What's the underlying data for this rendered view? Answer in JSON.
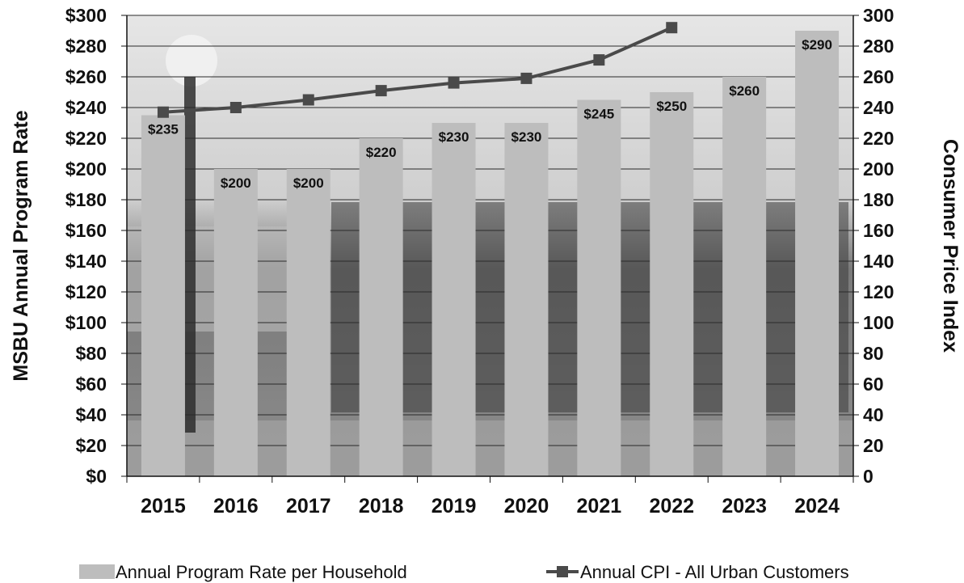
{
  "chart_data": {
    "type": "bar",
    "categories": [
      "2015",
      "2016",
      "2017",
      "2018",
      "2019",
      "2020",
      "2021",
      "2022",
      "2023",
      "2024"
    ],
    "ylabel": "MSBU Annual Program Rate",
    "y2label": "Consumer Price Index",
    "ylim": [
      0,
      300
    ],
    "y2lim": [
      0,
      300
    ],
    "ytick_step": 20,
    "grid": true,
    "legend_position": "bottom",
    "series": [
      {
        "name": "Annual Program Rate per Household",
        "type": "bar",
        "axis": "left",
        "color": "#bdbdbd",
        "values": [
          235,
          200,
          200,
          220,
          230,
          230,
          245,
          250,
          260,
          290
        ],
        "labels": [
          "$235",
          "$200",
          "$200",
          "$220",
          "$230",
          "$230",
          "$245",
          "$250",
          "$260",
          "$290"
        ]
      },
      {
        "name": "Annual CPI - All Urban Customers",
        "type": "line",
        "axis": "right",
        "color": "#4a4a4a",
        "values": [
          237,
          240,
          245,
          251,
          256,
          259,
          271,
          292,
          null,
          null
        ]
      }
    ]
  },
  "colors": {
    "plot_bg": "#9a9a9a",
    "bar": "#bdbdbd",
    "line": "#4a4a4a",
    "grid": "#2a2a2a"
  }
}
